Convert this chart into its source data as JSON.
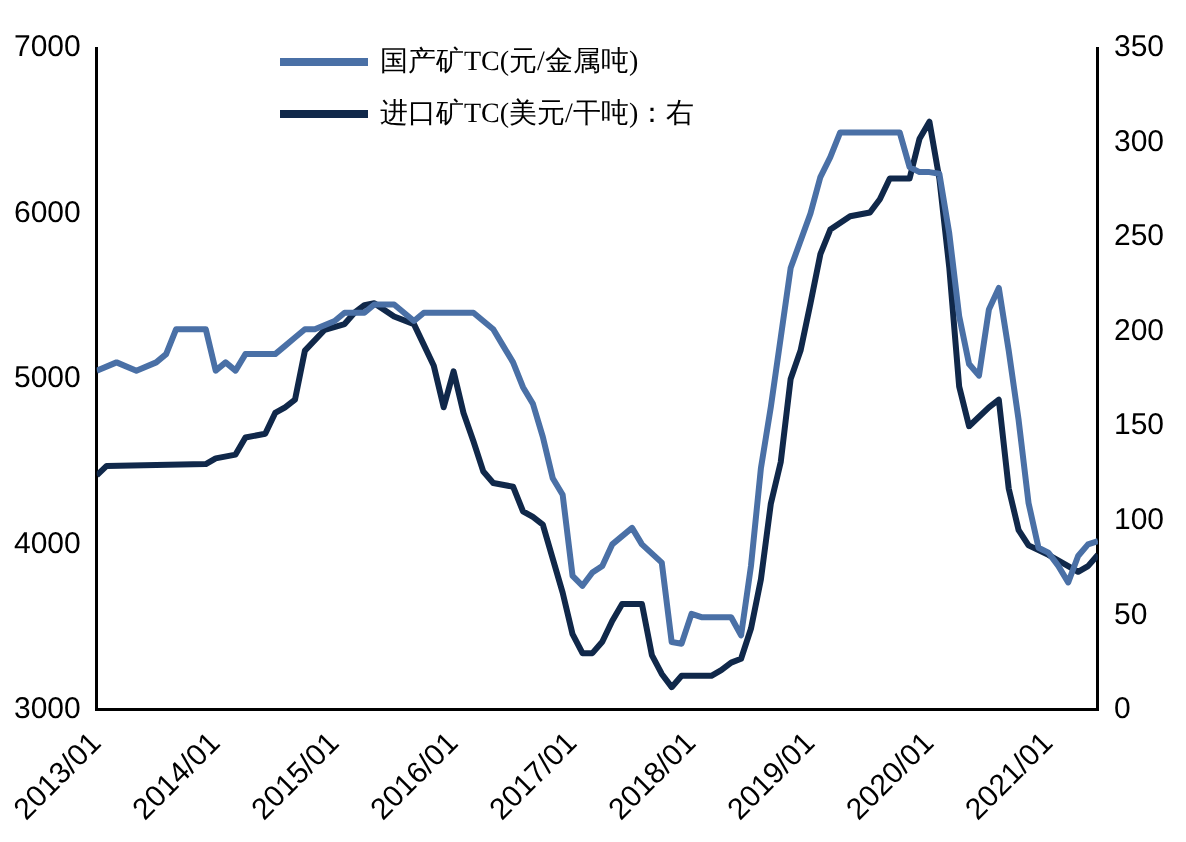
{
  "chart_data": {
    "type": "line",
    "legend": "top left",
    "line_style": "solid",
    "marker": "none",
    "xlim": [
      "2013-01",
      "2021-06"
    ],
    "xticks": [
      {
        "value": "2013-01",
        "label": "2013/01"
      },
      {
        "value": "2014-01",
        "label": "2014/01"
      },
      {
        "value": "2015-01",
        "label": "2015/01"
      },
      {
        "value": "2016-01",
        "label": "2016/01"
      },
      {
        "value": "2017-01",
        "label": "2017/01"
      },
      {
        "value": "2018-01",
        "label": "2018/01"
      },
      {
        "value": "2019-01",
        "label": "2019/01"
      },
      {
        "value": "2020-01",
        "label": "2020/01"
      },
      {
        "value": "2021-01",
        "label": "2021/01"
      }
    ],
    "ylim": [
      3000,
      7000
    ],
    "yticks": [
      3000,
      4000,
      5000,
      6000,
      7000
    ],
    "y2lim": [
      0,
      350
    ],
    "y2ticks": [
      0,
      50,
      100,
      150,
      200,
      250,
      300,
      350
    ],
    "series": [
      {
        "name": "国产矿TC(元/金属吨)",
        "color": "#4a70a6",
        "x": [
          "2013-01",
          "2013-03",
          "2013-05",
          "2013-07",
          "2013-08",
          "2013-09",
          "2013-12",
          "2014-01",
          "2014-02",
          "2014-03",
          "2014-04",
          "2014-07",
          "2014-08",
          "2014-09",
          "2014-10",
          "2014-11",
          "2015-01",
          "2015-02",
          "2015-04",
          "2015-05",
          "2015-07",
          "2015-08",
          "2015-09",
          "2015-10",
          "2016-03",
          "2016-05",
          "2016-06",
          "2016-07",
          "2016-08",
          "2016-09",
          "2016-10",
          "2016-11",
          "2016-12",
          "2017-01",
          "2017-02",
          "2017-03",
          "2017-04",
          "2017-05",
          "2017-07",
          "2017-08",
          "2017-10",
          "2017-11",
          "2017-12",
          "2018-01",
          "2018-02",
          "2018-05",
          "2018-06",
          "2018-07",
          "2018-08",
          "2018-09",
          "2018-10",
          "2018-11",
          "2019-01",
          "2019-02",
          "2019-03",
          "2019-04",
          "2019-10",
          "2019-11",
          "2019-12",
          "2020-01",
          "2020-02",
          "2020-03",
          "2020-04",
          "2020-05",
          "2020-06",
          "2020-07",
          "2020-08",
          "2020-09",
          "2020-10",
          "2020-11",
          "2020-12",
          "2021-01",
          "2021-02",
          "2021-03",
          "2021-04",
          "2021-05",
          "2021-06"
        ],
        "values": [
          5050,
          5100,
          5050,
          5100,
          5150,
          5300,
          5300,
          5050,
          5100,
          5050,
          5150,
          5150,
          5200,
          5250,
          5300,
          5300,
          5350,
          5400,
          5400,
          5450,
          5450,
          5400,
          5350,
          5400,
          5400,
          5300,
          5200,
          5100,
          4950,
          4850,
          4650,
          4400,
          4300,
          3810,
          3750,
          3830,
          3870,
          4000,
          4100,
          4000,
          3890,
          3410,
          3400,
          3580,
          3560,
          3560,
          3450,
          3870,
          4460,
          4830,
          5250,
          5670,
          6000,
          6220,
          6340,
          6490,
          6490,
          6280,
          6250,
          6250,
          6240,
          5880,
          5380,
          5090,
          5020,
          5420,
          5550,
          5170,
          4750,
          4250,
          3980,
          3950,
          3870,
          3770,
          3930,
          4000,
          4020
        ]
      },
      {
        "name": "进口矿TC(美元/干吨)：右",
        "color": "#10284a",
        "axis": "y2",
        "x": [
          "2013-01",
          "2013-02",
          "2013-12",
          "2014-01",
          "2014-03",
          "2014-04",
          "2014-06",
          "2014-07",
          "2014-08",
          "2014-09",
          "2014-10",
          "2014-12",
          "2015-02",
          "2015-03",
          "2015-04",
          "2015-05",
          "2015-07",
          "2015-09",
          "2015-10",
          "2015-11",
          "2015-12",
          "2016-01",
          "2016-02",
          "2016-03",
          "2016-04",
          "2016-05",
          "2016-07",
          "2016-08",
          "2016-09",
          "2016-10",
          "2016-11",
          "2016-12",
          "2017-01",
          "2017-02",
          "2017-03",
          "2017-04",
          "2017-05",
          "2017-06",
          "2017-08",
          "2017-09",
          "2017-10",
          "2017-11",
          "2017-12",
          "2018-03",
          "2018-04",
          "2018-05",
          "2018-06",
          "2018-07",
          "2018-08",
          "2018-09",
          "2018-10",
          "2018-11",
          "2018-12",
          "2019-01",
          "2019-02",
          "2019-03",
          "2019-05",
          "2019-07",
          "2019-08",
          "2019-09",
          "2019-11",
          "2019-12",
          "2020-01",
          "2020-02",
          "2020-03",
          "2020-04",
          "2020-05",
          "2020-07",
          "2020-08",
          "2020-09",
          "2020-10",
          "2020-11",
          "2021-01",
          "2021-03",
          "2021-04",
          "2021-05",
          "2021-06"
        ],
        "values": [
          124,
          129,
          130,
          133,
          135,
          144,
          146,
          157,
          160,
          164,
          190,
          201,
          204,
          210,
          214,
          215,
          208,
          204,
          193,
          182,
          160,
          179,
          157,
          142,
          126,
          120,
          118,
          105,
          102,
          98,
          80,
          62,
          40,
          30,
          30,
          36,
          47,
          56,
          56,
          29,
          19,
          12,
          18,
          18,
          21,
          25,
          27,
          43,
          69,
          109,
          131,
          175,
          190,
          215,
          241,
          254,
          261,
          263,
          270,
          281,
          281,
          302,
          311,
          281,
          234,
          171,
          150,
          160,
          164,
          117,
          95,
          87,
          82,
          76,
          73,
          76,
          82
        ]
      }
    ]
  }
}
